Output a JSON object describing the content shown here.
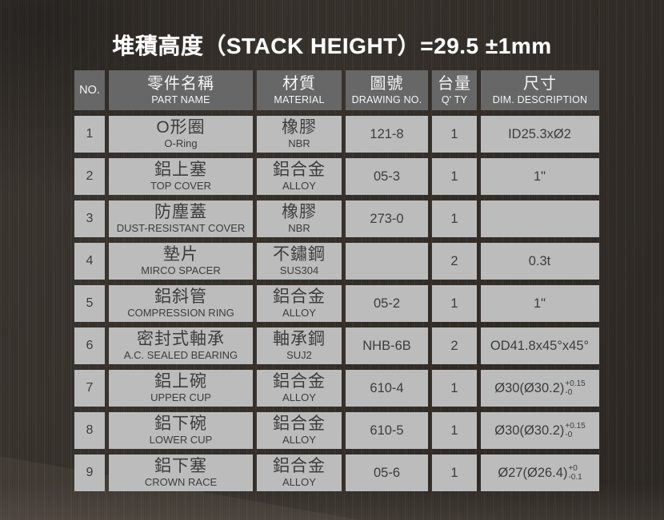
{
  "title": "堆積高度（STACK HEIGHT）=29.5 ±1mm",
  "colors": {
    "background": "#37312c",
    "header_bg": "#676767",
    "header_text": "#f5f5f5",
    "cell_bg": "#bcbcbc",
    "cell_text": "#3c3c3c",
    "title_text": "#ffffff"
  },
  "table": {
    "columns": {
      "no": {
        "label": "NO."
      },
      "part": {
        "zh": "零件名稱",
        "en": "PART NAME"
      },
      "material": {
        "zh": "材質",
        "en": "MATERIAL"
      },
      "drawing": {
        "zh": "圖號",
        "en": "DRAWING NO."
      },
      "qty": {
        "zh": "台量",
        "en": "Q' TY"
      },
      "dim": {
        "zh": "尺寸",
        "en": "DIM. DESCRIPTION"
      }
    },
    "rows": [
      {
        "no": "1",
        "part_zh": "O形圈",
        "part_en": "O-Ring",
        "mat_zh": "橡膠",
        "mat_en": "NBR",
        "drawing": "121-8",
        "qty": "1",
        "dim": "ID25.3xØ2",
        "dim_sup": "",
        "dim_sub": ""
      },
      {
        "no": "2",
        "part_zh": "鋁上塞",
        "part_en": "TOP COVER",
        "mat_zh": "鋁合金",
        "mat_en": "ALLOY",
        "drawing": "05-3",
        "qty": "1",
        "dim": "1\"",
        "dim_sup": "",
        "dim_sub": ""
      },
      {
        "no": "3",
        "part_zh": "防塵蓋",
        "part_en": "DUST-RESISTANT COVER",
        "mat_zh": "橡膠",
        "mat_en": "NBR",
        "drawing": "273-0",
        "qty": "1",
        "dim": "",
        "dim_sup": "",
        "dim_sub": ""
      },
      {
        "no": "4",
        "part_zh": "墊片",
        "part_en": "MIRCO SPACER",
        "mat_zh": "不鏽鋼",
        "mat_en": "SUS304",
        "drawing": "",
        "qty": "2",
        "dim": "0.3t",
        "dim_sup": "",
        "dim_sub": ""
      },
      {
        "no": "5",
        "part_zh": "鋁斜管",
        "part_en": "COMPRESSION RING",
        "mat_zh": "鋁合金",
        "mat_en": "ALLOY",
        "drawing": "05-2",
        "qty": "1",
        "dim": "1\"",
        "dim_sup": "",
        "dim_sub": ""
      },
      {
        "no": "6",
        "part_zh": "密封式軸承",
        "part_en": "A.C. SEALED BEARING",
        "mat_zh": "軸承鋼",
        "mat_en": "SUJ2",
        "drawing": "NHB-6B",
        "qty": "2",
        "dim": "OD41.8x45°x45°",
        "dim_sup": "",
        "dim_sub": ""
      },
      {
        "no": "7",
        "part_zh": "鋁上碗",
        "part_en": "UPPER CUP",
        "mat_zh": "鋁合金",
        "mat_en": "ALLOY",
        "drawing": "610-4",
        "qty": "1",
        "dim": "Ø30(Ø30.2)",
        "dim_sup": "+0.15",
        "dim_sub": "-0"
      },
      {
        "no": "8",
        "part_zh": "鋁下碗",
        "part_en": "LOWER CUP",
        "mat_zh": "鋁合金",
        "mat_en": "ALLOY",
        "drawing": "610-5",
        "qty": "1",
        "dim": "Ø30(Ø30.2)",
        "dim_sup": "+0.15",
        "dim_sub": "-0"
      },
      {
        "no": "9",
        "part_zh": "鋁下塞",
        "part_en": "CROWN RACE",
        "mat_zh": "鋁合金",
        "mat_en": "ALLOY",
        "drawing": "05-6",
        "qty": "1",
        "dim": "Ø27(Ø26.4)",
        "dim_sup": "+0",
        "dim_sub": "-0.1"
      }
    ]
  }
}
